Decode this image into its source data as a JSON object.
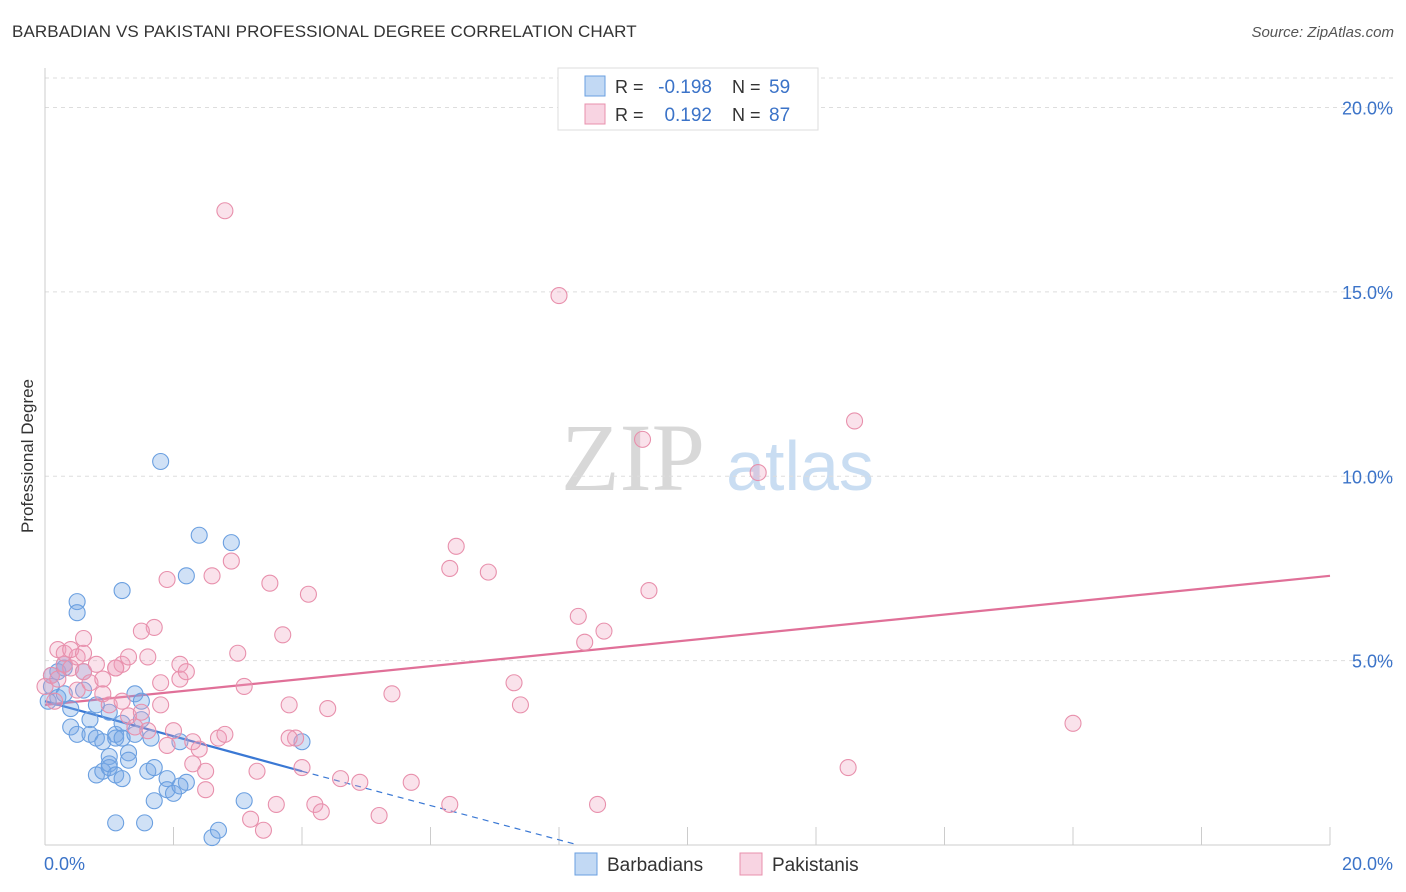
{
  "title": "BARBADIAN VS PAKISTANI PROFESSIONAL DEGREE CORRELATION CHART",
  "source": "Source: ZipAtlas.com",
  "watermark": {
    "zip": "ZIP",
    "atlas": "atlas"
  },
  "colors": {
    "blue": "#6a9fe0",
    "blue_fill": "rgba(120,170,230,0.35)",
    "blue_line": "#3a78d4",
    "pink": "#e890ac",
    "pink_fill": "rgba(240,160,190,0.30)",
    "pink_line": "#e07098",
    "tick_text": "#3b73c8",
    "grid": "#dddddd"
  },
  "legend_top": [
    {
      "r_label": "R =",
      "r_value": "-0.198",
      "n_label": "N =",
      "n_value": "59",
      "series": "blue"
    },
    {
      "r_label": "R =",
      "r_value": " 0.192",
      "n_label": "N =",
      "n_value": "87",
      "series": "pink"
    }
  ],
  "chart_data": {
    "type": "scatter",
    "title": "BARBADIAN VS PAKISTANI PROFESSIONAL DEGREE CORRELATION CHART",
    "xlabel": "",
    "ylabel": "Professional Degree",
    "xlim": [
      0,
      20
    ],
    "ylim": [
      0,
      20.8
    ],
    "x_tick_labels": [
      "0.0%",
      "20.0%"
    ],
    "y_ticks": [
      5,
      10,
      15,
      20
    ],
    "y_tick_labels": [
      "5.0%",
      "10.0%",
      "15.0%",
      "20.0%"
    ],
    "grid": true,
    "legend_position": "bottom-center",
    "series": [
      {
        "name": "Barbadians",
        "color": "blue",
        "r": -0.198,
        "n": 59,
        "trend": {
          "x0": 0.0,
          "y0": 3.9,
          "x1": 4.0,
          "y1": 2.0,
          "dash_to_x": 8.3,
          "dash_to_y": 0.0
        },
        "points": [
          [
            0.1,
            4.6
          ],
          [
            0.1,
            4.3
          ],
          [
            0.2,
            4.7
          ],
          [
            0.2,
            4.0
          ],
          [
            0.3,
            4.9
          ],
          [
            0.3,
            4.8
          ],
          [
            0.4,
            3.7
          ],
          [
            0.4,
            3.2
          ],
          [
            0.5,
            3.0
          ],
          [
            0.5,
            6.6
          ],
          [
            0.5,
            6.3
          ],
          [
            0.6,
            4.7
          ],
          [
            0.7,
            3.4
          ],
          [
            0.7,
            3.0
          ],
          [
            0.8,
            2.9
          ],
          [
            0.8,
            1.9
          ],
          [
            0.9,
            2.8
          ],
          [
            0.9,
            2.0
          ],
          [
            1.0,
            3.6
          ],
          [
            1.0,
            2.4
          ],
          [
            1.0,
            2.1
          ],
          [
            1.1,
            3.0
          ],
          [
            1.1,
            2.9
          ],
          [
            1.0,
            2.2
          ],
          [
            1.1,
            1.9
          ],
          [
            1.2,
            3.3
          ],
          [
            1.2,
            2.9
          ],
          [
            1.3,
            2.5
          ],
          [
            1.3,
            2.3
          ],
          [
            1.4,
            3.0
          ],
          [
            1.5,
            3.4
          ],
          [
            1.4,
            4.1
          ],
          [
            1.5,
            3.9
          ],
          [
            1.6,
            2.0
          ],
          [
            1.7,
            2.1
          ],
          [
            1.8,
            10.4
          ],
          [
            1.9,
            1.8
          ],
          [
            1.9,
            1.5
          ],
          [
            2.0,
            1.4
          ],
          [
            2.1,
            2.8
          ],
          [
            2.2,
            1.7
          ],
          [
            2.2,
            7.3
          ],
          [
            2.4,
            8.4
          ],
          [
            2.6,
            0.2
          ],
          [
            2.7,
            0.4
          ],
          [
            2.9,
            8.2
          ],
          [
            3.1,
            1.2
          ],
          [
            4.0,
            2.8
          ],
          [
            1.7,
            1.2
          ],
          [
            1.1,
            0.6
          ],
          [
            1.55,
            0.6
          ],
          [
            2.1,
            1.6
          ],
          [
            1.2,
            1.8
          ],
          [
            0.3,
            4.1
          ],
          [
            0.6,
            4.2
          ],
          [
            0.8,
            3.8
          ],
          [
            1.2,
            6.9
          ],
          [
            0.05,
            3.9
          ],
          [
            1.65,
            2.9
          ]
        ]
      },
      {
        "name": "Pakistanis",
        "color": "pink",
        "r": 0.192,
        "n": 87,
        "trend": {
          "x0": 0.0,
          "y0": 3.8,
          "x1": 20.0,
          "y1": 7.3
        },
        "points": [
          [
            0.0,
            4.3
          ],
          [
            0.1,
            4.6
          ],
          [
            0.2,
            5.3
          ],
          [
            0.2,
            4.5
          ],
          [
            0.3,
            4.9
          ],
          [
            0.3,
            5.2
          ],
          [
            0.4,
            4.8
          ],
          [
            0.5,
            5.1
          ],
          [
            0.5,
            4.2
          ],
          [
            0.6,
            5.6
          ],
          [
            0.6,
            4.7
          ],
          [
            0.7,
            4.4
          ],
          [
            0.8,
            4.9
          ],
          [
            0.9,
            4.5
          ],
          [
            0.9,
            4.1
          ],
          [
            1.0,
            3.8
          ],
          [
            1.1,
            4.8
          ],
          [
            1.2,
            4.9
          ],
          [
            1.2,
            3.9
          ],
          [
            1.3,
            5.1
          ],
          [
            1.3,
            3.5
          ],
          [
            1.4,
            3.2
          ],
          [
            1.5,
            3.6
          ],
          [
            1.6,
            5.1
          ],
          [
            1.6,
            3.1
          ],
          [
            1.7,
            5.9
          ],
          [
            1.8,
            4.4
          ],
          [
            1.8,
            3.8
          ],
          [
            1.9,
            7.2
          ],
          [
            1.9,
            2.7
          ],
          [
            2.0,
            3.1
          ],
          [
            2.1,
            4.5
          ],
          [
            2.1,
            4.9
          ],
          [
            2.2,
            4.7
          ],
          [
            2.3,
            2.2
          ],
          [
            2.4,
            2.6
          ],
          [
            2.5,
            2.0
          ],
          [
            2.5,
            1.5
          ],
          [
            2.6,
            7.3
          ],
          [
            2.7,
            2.9
          ],
          [
            2.8,
            3.0
          ],
          [
            2.9,
            7.7
          ],
          [
            3.0,
            5.2
          ],
          [
            3.1,
            4.3
          ],
          [
            3.2,
            0.7
          ],
          [
            3.3,
            2.0
          ],
          [
            3.4,
            0.4
          ],
          [
            3.5,
            7.1
          ],
          [
            3.6,
            1.1
          ],
          [
            3.7,
            5.7
          ],
          [
            3.8,
            3.8
          ],
          [
            3.9,
            2.9
          ],
          [
            4.0,
            2.1
          ],
          [
            4.1,
            6.8
          ],
          [
            4.2,
            1.1
          ],
          [
            4.3,
            0.9
          ],
          [
            4.4,
            3.7
          ],
          [
            4.6,
            1.8
          ],
          [
            4.9,
            1.7
          ],
          [
            5.2,
            0.8
          ],
          [
            5.4,
            4.1
          ],
          [
            5.7,
            1.7
          ],
          [
            6.3,
            1.1
          ],
          [
            6.3,
            7.5
          ],
          [
            6.4,
            8.1
          ],
          [
            6.9,
            7.4
          ],
          [
            7.3,
            4.4
          ],
          [
            7.4,
            3.8
          ],
          [
            8.0,
            14.9
          ],
          [
            8.3,
            6.2
          ],
          [
            8.4,
            5.5
          ],
          [
            8.6,
            1.1
          ],
          [
            8.7,
            5.8
          ],
          [
            9.3,
            11.0
          ],
          [
            9.4,
            6.9
          ],
          [
            11.1,
            10.1
          ],
          [
            12.5,
            2.1
          ],
          [
            12.6,
            11.5
          ],
          [
            16.0,
            3.3
          ],
          [
            2.8,
            17.2
          ],
          [
            0.4,
            5.3
          ],
          [
            1.5,
            5.8
          ],
          [
            2.3,
            2.8
          ],
          [
            3.8,
            2.9
          ],
          [
            1.1,
            4.8
          ],
          [
            0.6,
            5.2
          ],
          [
            0.15,
            3.9
          ]
        ]
      }
    ]
  },
  "legend_bottom": [
    {
      "label": "Barbadians",
      "series": "blue"
    },
    {
      "label": "Pakistanis",
      "series": "pink"
    }
  ]
}
